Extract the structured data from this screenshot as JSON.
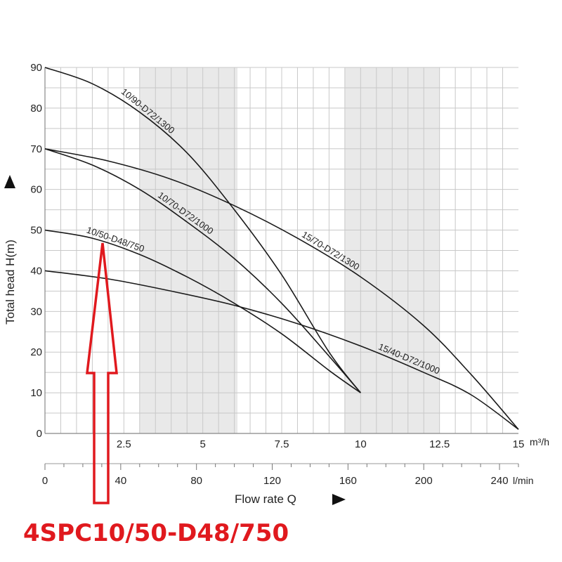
{
  "chart_data": {
    "type": "line",
    "title": "",
    "xlabel": "Flow rate Q",
    "ylabel": "Total head H(m)",
    "x_unit_primary": "m³/h",
    "x_unit_secondary": "l/min",
    "xlim": [
      0,
      15
    ],
    "ylim": [
      0,
      90
    ],
    "x_ticks_m3h": [
      "2.5",
      "5",
      "7.5",
      "10",
      "12.5",
      "15"
    ],
    "x_tick_values_m3h": [
      2.5,
      5,
      7.5,
      10,
      12.5,
      15
    ],
    "x_ticks_lmin": [
      "0",
      "40",
      "80",
      "120",
      "160",
      "200",
      "240"
    ],
    "x_tick_values_lmin": [
      0,
      40,
      80,
      120,
      160,
      200,
      240
    ],
    "y_ticks": [
      "0",
      "10",
      "20",
      "30",
      "40",
      "50",
      "60",
      "70",
      "80",
      "90"
    ],
    "y_tick_values": [
      0,
      10,
      20,
      30,
      40,
      50,
      60,
      70,
      80,
      90
    ],
    "grid": true,
    "shaded_ranges_m3h": [
      [
        3,
        6.1
      ],
      [
        9.5,
        12.5
      ]
    ],
    "series": [
      {
        "name": "10/90-D72/1300",
        "x": [
          0,
          1.5,
          3,
          4.5,
          6,
          7.5,
          9,
          10
        ],
        "y": [
          90,
          86,
          79,
          69,
          55,
          39,
          20,
          10
        ]
      },
      {
        "name": "10/70-D72/1000",
        "x": [
          0,
          1.5,
          3,
          4.5,
          6,
          7.5,
          9,
          10
        ],
        "y": [
          70,
          66,
          60,
          52,
          43,
          32,
          19,
          10
        ]
      },
      {
        "name": "10/50-D48/750",
        "x": [
          0,
          1.5,
          3,
          4.5,
          6,
          7.5,
          9,
          10
        ],
        "y": [
          50,
          48,
          44,
          38.5,
          32,
          24.5,
          15.5,
          10
        ]
      },
      {
        "name": "15/70-D72/1300",
        "x": [
          0,
          2,
          4,
          6,
          8,
          10,
          12,
          13.5,
          15
        ],
        "y": [
          70,
          67,
          62.5,
          56,
          48,
          38.5,
          26.5,
          14.5,
          1
        ]
      },
      {
        "name": "15/40-D72/1000",
        "x": [
          0,
          2,
          4,
          6,
          8,
          10,
          12,
          13.5,
          15
        ],
        "y": [
          40,
          38,
          35,
          31.5,
          27,
          21.5,
          15,
          9.5,
          1
        ]
      }
    ],
    "annotation": {
      "text": "4SPC10/50-D48/750",
      "points_to_series": "10/50-D48/750",
      "color": "#e0191e"
    },
    "shade_color": "#e9e9e9",
    "grid_color": "#c8c8c8",
    "line_color": "#1a1a1a"
  }
}
